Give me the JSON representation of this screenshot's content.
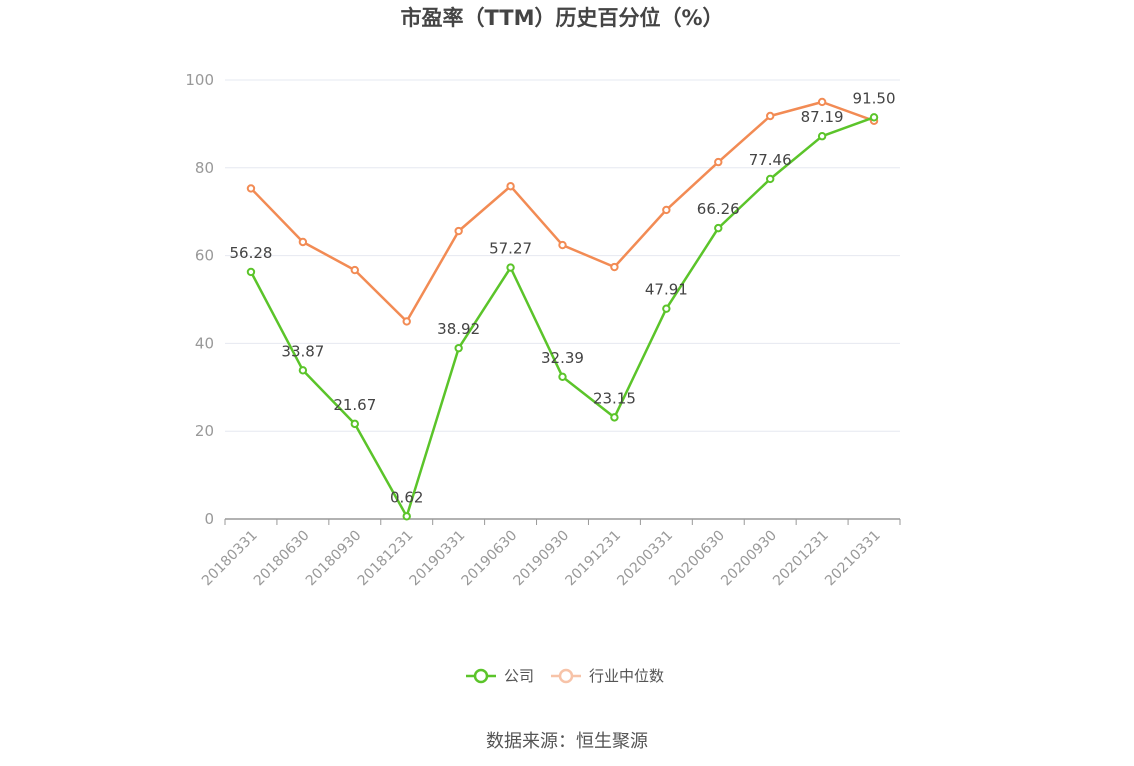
{
  "chart_data": {
    "type": "line",
    "title": "市盈率（TTM）历史百分位（%）",
    "categories": [
      "20180331",
      "20180630",
      "20180930",
      "20181231",
      "20190331",
      "20190630",
      "20190930",
      "20191231",
      "20200331",
      "20200630",
      "20200930",
      "20201231",
      "20210331"
    ],
    "ylim": [
      0,
      100
    ],
    "yticks": [
      0,
      20,
      40,
      60,
      80,
      100
    ],
    "grid": true,
    "legend_position": "bottom-center",
    "series": [
      {
        "name": "公司",
        "color": "#5bc42a",
        "values": [
          56.28,
          33.87,
          21.67,
          0.62,
          38.92,
          57.27,
          32.39,
          23.15,
          47.91,
          66.26,
          77.46,
          87.19,
          91.5
        ],
        "labels": [
          "56.28",
          "33.87",
          "21.67",
          "0.62",
          "38.92",
          "57.27",
          "32.39",
          "23.15",
          "47.91",
          "66.26",
          "77.46",
          "87.19",
          "91.50"
        ]
      },
      {
        "name": "行业中位数",
        "color": "#f28b54",
        "values": [
          75.3,
          63.1,
          56.7,
          45.0,
          65.6,
          75.8,
          62.4,
          57.4,
          70.4,
          81.3,
          91.8,
          95.0,
          90.7
        ]
      }
    ]
  },
  "source": "数据来源：恒生聚源"
}
